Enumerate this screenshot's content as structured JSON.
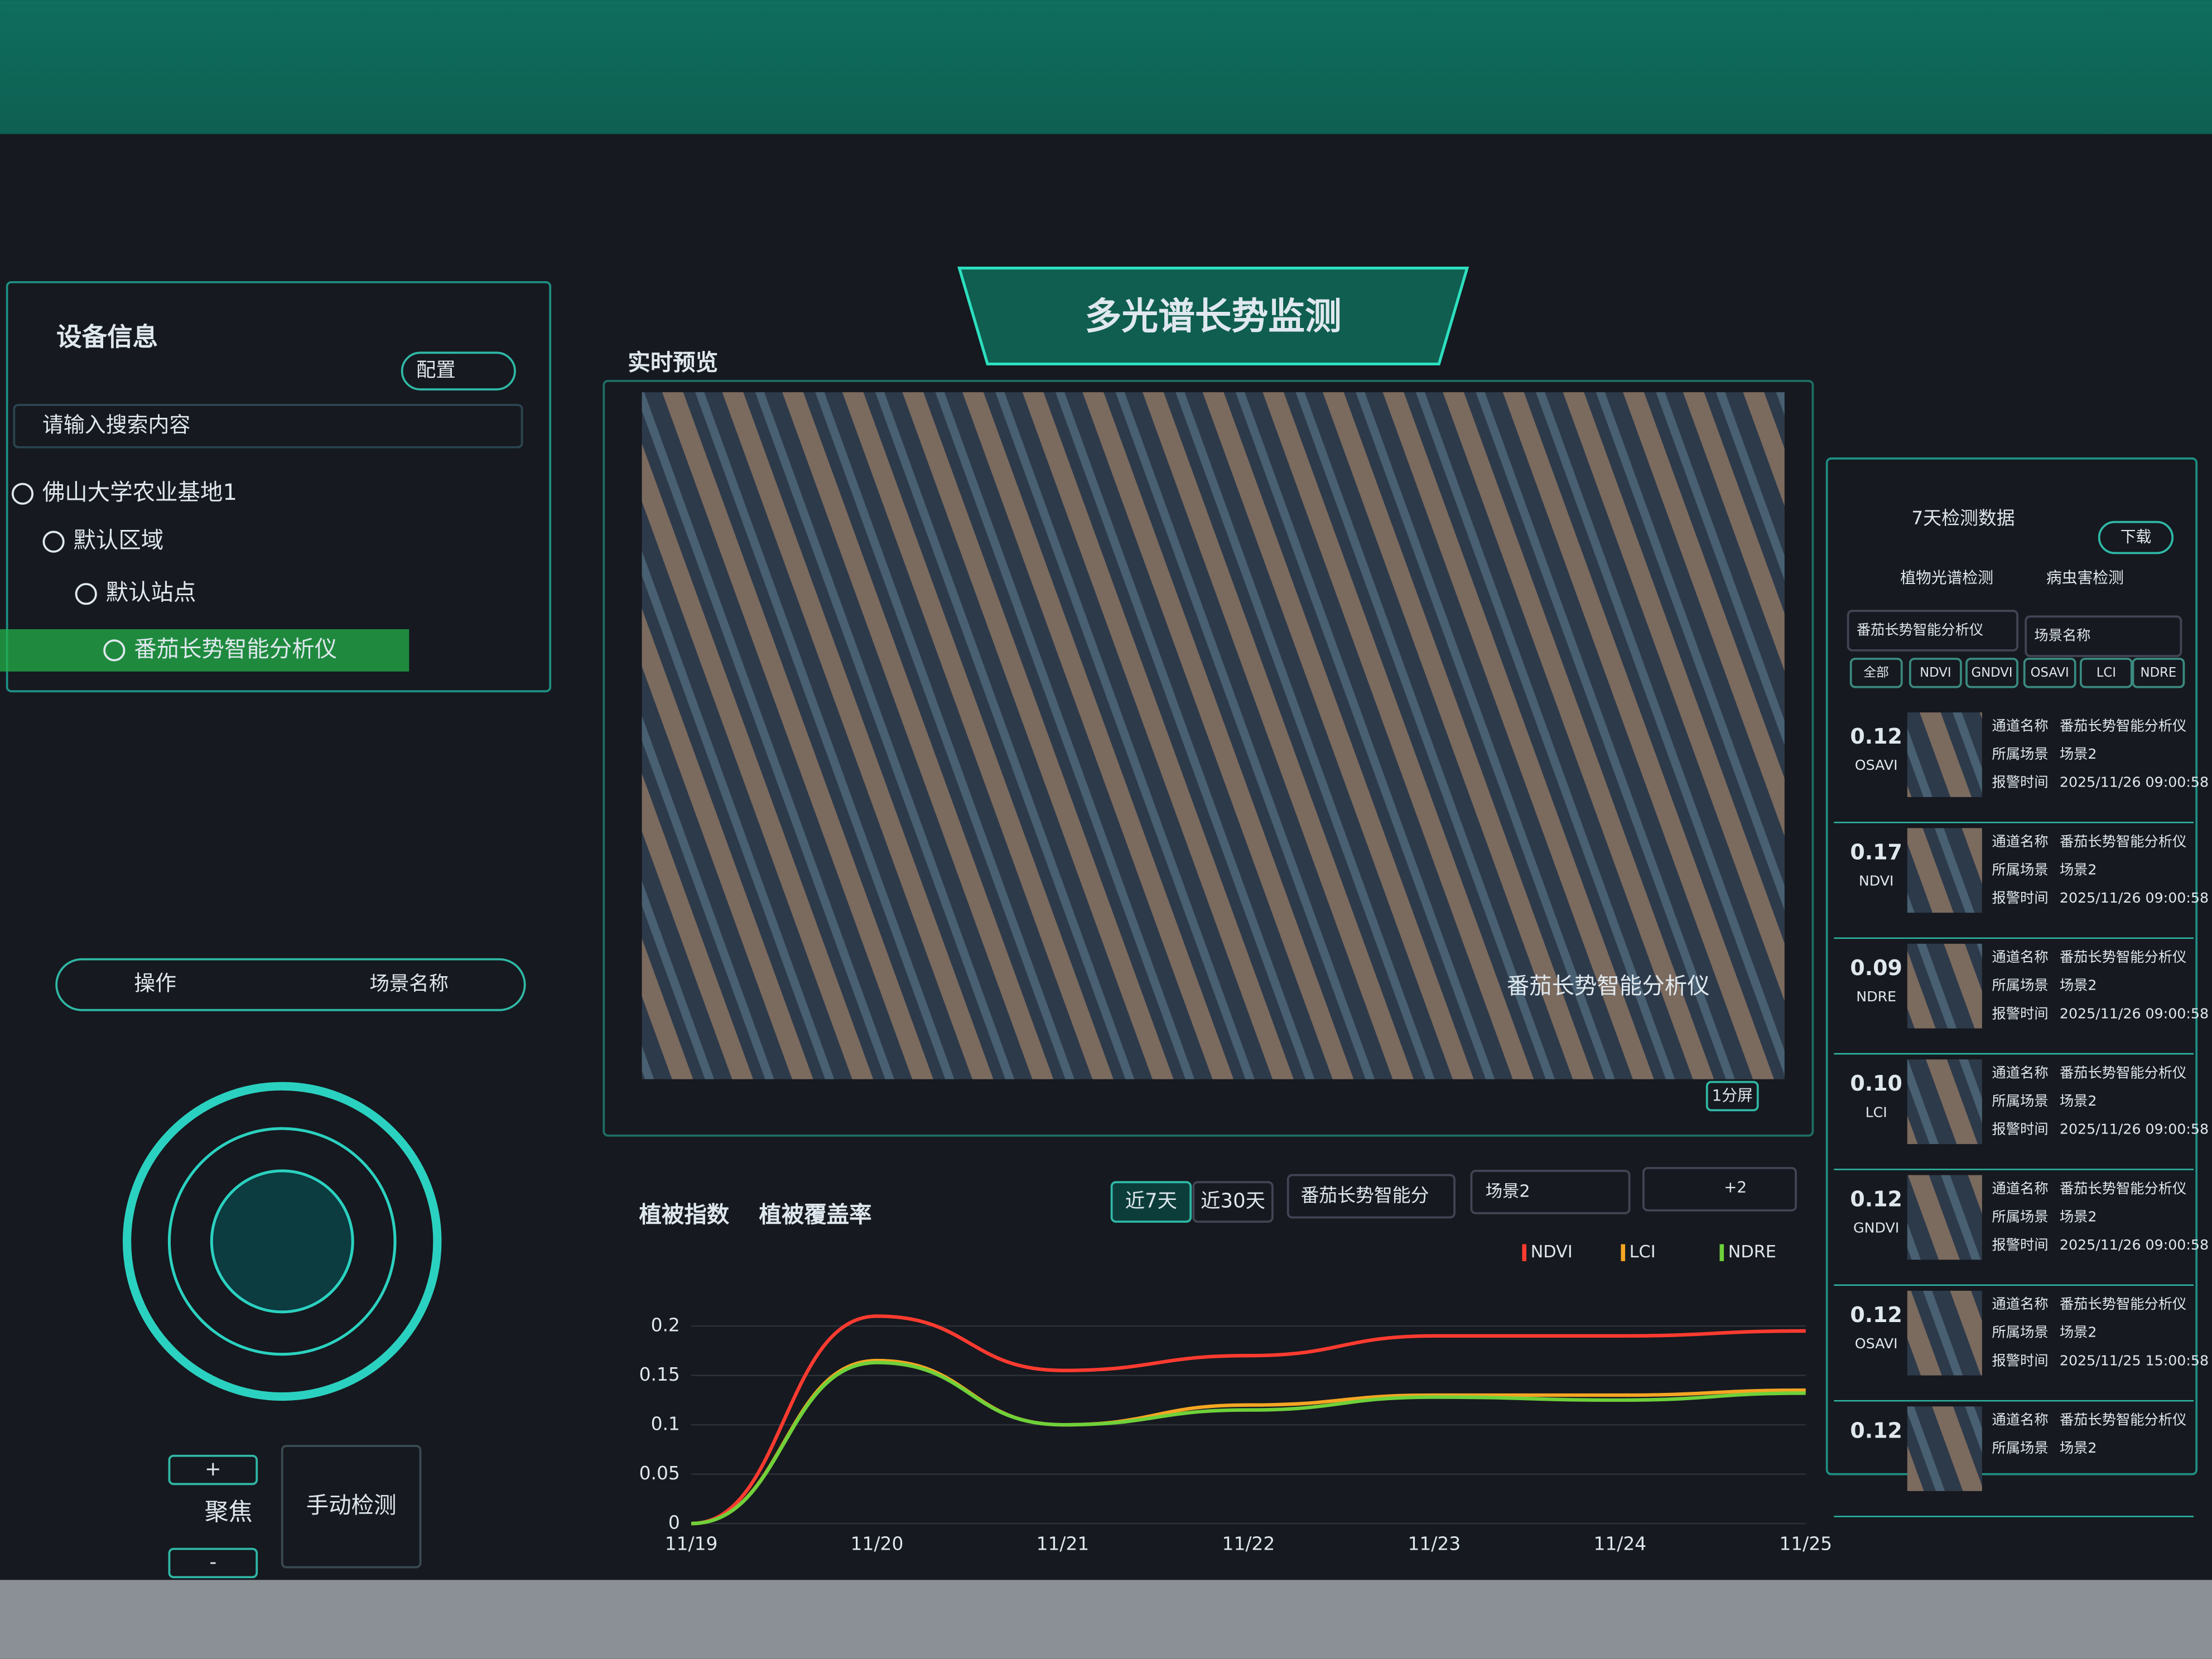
{
  "header": {
    "title": "多光谱长势监测"
  },
  "device_panel": {
    "title": "设备信息",
    "config_button": "配置",
    "search_placeholder": "请输入搜索内容",
    "tree": [
      "佛山大学农业基地1",
      "默认区域",
      "默认站点",
      "番茄长势智能分析仪"
    ]
  },
  "control_panel": {
    "title": "操作",
    "scene_select": "场景名称",
    "zoom_in": "+",
    "zoom_out": "-",
    "focus": "聚焦",
    "manual_detect": "手动检测"
  },
  "preview": {
    "title": "实时预览",
    "overlay_label": "番茄长势智能分析仪",
    "layout_button": "1分屏"
  },
  "trend_panel": {
    "tabs": [
      "植被指数",
      "植被覆盖率"
    ],
    "ranges": [
      "近7天",
      "近30天"
    ],
    "device_select": "番茄长势智能分",
    "scene_tag": "场景2",
    "more_tag": "+2",
    "chart": {
      "type": "line",
      "categories": [
        "11/19",
        "11/20",
        "11/21",
        "11/22",
        "11/23",
        "11/24",
        "11/25"
      ],
      "series": [
        {
          "name": "NDVI",
          "color": "#ff3b30",
          "values": [
            0,
            0.21,
            0.155,
            0.17,
            0.19,
            0.19,
            0.195
          ]
        },
        {
          "name": "LCI",
          "color": "#f5a623",
          "values": [
            0,
            0.165,
            0.1,
            0.12,
            0.13,
            0.13,
            0.135
          ]
        },
        {
          "name": "NDRE",
          "color": "#6fd13a",
          "values": [
            0,
            0.163,
            0.1,
            0.115,
            0.128,
            0.125,
            0.132
          ]
        }
      ],
      "ylim": [
        0,
        0.25
      ],
      "yticks": [
        0,
        0.05,
        0.1,
        0.15,
        0.2
      ],
      "grid": true
    }
  },
  "records_panel": {
    "title": "7天检测数据",
    "download_button": "下载",
    "tabs": [
      "植物光谱检测",
      "病虫害检测"
    ],
    "device_select": "番茄长势智能分析仪",
    "scene_select": "场景名称",
    "filters": [
      "全部",
      "NDVI",
      "GNDVI",
      "OSAVI",
      "LCI",
      "NDRE"
    ],
    "field_labels": [
      "通道名称",
      "所属场景",
      "报警时间"
    ],
    "items": [
      {
        "value": "0.12",
        "index": "OSAVI",
        "channel": "番茄长势智能分析仪",
        "scene": "场景2",
        "time": "2025/11/26 09:00:58"
      },
      {
        "value": "0.17",
        "index": "NDVI",
        "channel": "番茄长势智能分析仪",
        "scene": "场景2",
        "time": "2025/11/26 09:00:58"
      },
      {
        "value": "0.09",
        "index": "NDRE",
        "channel": "番茄长势智能分析仪",
        "scene": "场景2",
        "time": "2025/11/26 09:00:58"
      },
      {
        "value": "0.10",
        "index": "LCI",
        "channel": "番茄长势智能分析仪",
        "scene": "场景2",
        "time": "2025/11/26 09:00:58"
      },
      {
        "value": "0.12",
        "index": "GNDVI",
        "channel": "番茄长势智能分析仪",
        "scene": "场景2",
        "time": "2025/11/26 09:00:58"
      },
      {
        "value": "0.12",
        "index": "OSAVI",
        "channel": "番茄长势智能分析仪",
        "scene": "场景2",
        "time": "2025/11/25 15:00:58"
      },
      {
        "value": "0.12",
        "channel": "番茄长势智能分析仪",
        "scene": "场景2"
      }
    ]
  }
}
